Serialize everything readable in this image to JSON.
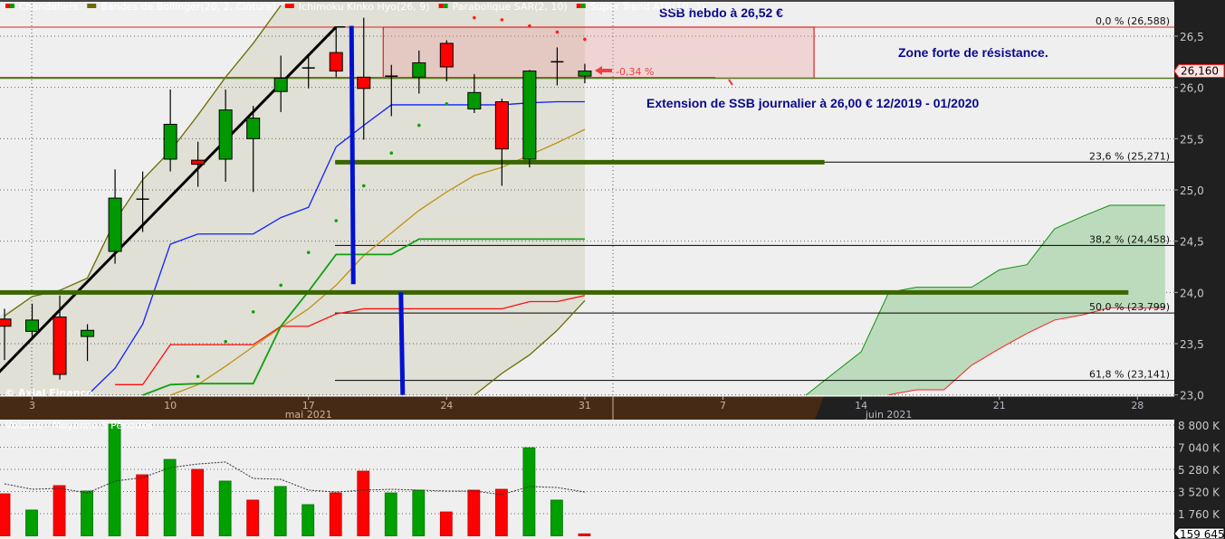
{
  "legend": {
    "items": [
      {
        "label": "Chandeliers",
        "colors": [
          "#ff0000",
          "#00a000"
        ]
      },
      {
        "label": "Bandes de Bollinger(20, 2, Clôture)",
        "colors": [
          "#6b6b00"
        ]
      },
      {
        "label": "Ichimoku Kinko Hyo(26, 9)",
        "colors": [
          "#ff0000"
        ]
      },
      {
        "label": "Parabolique SAR(2, 10)",
        "colors": [
          "#ff0000",
          "#00a000"
        ]
      },
      {
        "label": "Super Trend ATR(10, 3)",
        "colors": [
          "#ff0000",
          "#00a000"
        ]
      }
    ],
    "volume_label": "Volume - Moyenne 5 Périodes",
    "watermark": "© Axial Finance"
  },
  "annotations": {
    "ssb_hebdo": "SSB hebdo à 26,52 €",
    "resistance": "Zone forte de résistance.",
    "ssb_journalier": "Extension de SSB journalier à 26,00 € 12/2019 - 01/2020",
    "change": "-0,34 %"
  },
  "colors": {
    "up": "#009900",
    "down": "#ff0000",
    "annotation": "#0a0a8c",
    "ssb_line": "#3a6600",
    "fib": "#000000",
    "axis_bg": "#202020",
    "time_bg_past": "#472a16"
  },
  "chart_data": [
    {
      "type": "candlestick",
      "title": "",
      "ylim": [
        23.0,
        26.85
      ],
      "y_ticks": [
        "26,5",
        "26,0",
        "25,5",
        "25,0",
        "24,5",
        "24,0",
        "23,5",
        "23,0"
      ],
      "y_tick_values": [
        26.5,
        26.0,
        25.5,
        25.0,
        24.5,
        24.0,
        23.5,
        23.0
      ],
      "x_ticks": [
        {
          "date": "2021-05-03",
          "label": "3"
        },
        {
          "date": "2021-05-10",
          "label": "10"
        },
        {
          "date": "2021-05-17",
          "label": "17"
        },
        {
          "date": "2021-05-24",
          "label": "24"
        },
        {
          "date": "2021-05-31",
          "label": "31"
        },
        {
          "date": "2021-06-07",
          "label": "7"
        },
        {
          "date": "2021-06-14",
          "label": "14"
        },
        {
          "date": "2021-06-21",
          "label": "21"
        },
        {
          "date": "2021-06-28",
          "label": "28"
        }
      ],
      "x_months": [
        {
          "date": "2021-05-17",
          "label": "mai 2021"
        },
        {
          "date": "2021-06-15",
          "label": "juin 2021"
        }
      ],
      "x_end_date": "2021-06-29",
      "last_price": "26,160",
      "grid": true,
      "candles": [
        {
          "date": "2021-04-30",
          "o": 23.74,
          "h": 23.84,
          "l": 23.34,
          "c": 23.67
        },
        {
          "date": "2021-05-03",
          "o": 23.62,
          "h": 23.89,
          "l": 23.55,
          "c": 23.73
        },
        {
          "date": "2021-05-04",
          "o": 23.76,
          "h": 23.97,
          "l": 23.15,
          "c": 23.2
        },
        {
          "date": "2021-05-05",
          "o": 23.57,
          "h": 23.69,
          "l": 23.33,
          "c": 23.63
        },
        {
          "date": "2021-05-06",
          "o": 24.4,
          "h": 25.2,
          "l": 24.28,
          "c": 24.92
        },
        {
          "date": "2021-05-07",
          "o": 24.91,
          "h": 25.18,
          "l": 24.59,
          "c": 24.91
        },
        {
          "date": "2021-05-10",
          "o": 25.3,
          "h": 25.98,
          "l": 25.18,
          "c": 25.64
        },
        {
          "date": "2021-05-11",
          "o": 25.29,
          "h": 25.47,
          "l": 25.03,
          "c": 25.25
        },
        {
          "date": "2021-05-12",
          "o": 25.3,
          "h": 25.98,
          "l": 25.08,
          "c": 25.78
        },
        {
          "date": "2021-05-13",
          "o": 25.5,
          "h": 25.82,
          "l": 24.98,
          "c": 25.7
        },
        {
          "date": "2021-05-14",
          "o": 25.96,
          "h": 26.31,
          "l": 25.76,
          "c": 26.09
        },
        {
          "date": "2021-05-17",
          "o": 26.19,
          "h": 26.31,
          "l": 25.99,
          "c": 26.19
        },
        {
          "date": "2021-05-18",
          "o": 26.34,
          "h": 26.59,
          "l": 26.1,
          "c": 26.16
        },
        {
          "date": "2021-05-19",
          "o": 26.1,
          "h": 26.68,
          "l": 25.49,
          "c": 25.99
        },
        {
          "date": "2021-05-20",
          "o": 26.11,
          "h": 26.22,
          "l": 25.72,
          "c": 26.11
        },
        {
          "date": "2021-05-21",
          "o": 26.1,
          "h": 26.36,
          "l": 25.94,
          "c": 26.24
        },
        {
          "date": "2021-05-24",
          "o": 26.43,
          "h": 26.46,
          "l": 26.06,
          "c": 26.2
        },
        {
          "date": "2021-05-25",
          "o": 25.79,
          "h": 26.13,
          "l": 25.75,
          "c": 25.95
        },
        {
          "date": "2021-05-26",
          "o": 25.86,
          "h": 25.89,
          "l": 25.04,
          "c": 25.4
        },
        {
          "date": "2021-05-27",
          "o": 25.3,
          "h": 26.17,
          "l": 25.22,
          "c": 26.16
        },
        {
          "date": "2021-05-28",
          "o": 26.25,
          "h": 26.39,
          "l": 26.02,
          "c": 26.25
        },
        {
          "date": "2021-05-31",
          "o": 26.11,
          "h": 26.23,
          "l": 26.04,
          "c": 26.16
        }
      ],
      "indicators": {
        "bollinger_upper": [
          23.77,
          23.96,
          24.02,
          24.14,
          24.7,
          25.1,
          25.38,
          25.73,
          26.1,
          26.43,
          26.8,
          null,
          null,
          null,
          null,
          null,
          null,
          null,
          null,
          null,
          null,
          null
        ],
        "bollinger_middle": [
          null,
          null,
          null,
          null,
          null,
          null,
          22.95,
          23.1,
          23.28,
          23.47,
          23.66,
          23.84,
          24.07,
          24.36,
          24.58,
          24.8,
          24.98,
          25.14,
          25.22,
          25.34,
          25.46,
          25.59
        ],
        "bollinger_lower": [
          null,
          null,
          null,
          null,
          null,
          null,
          null,
          null,
          null,
          null,
          null,
          null,
          null,
          null,
          null,
          null,
          null,
          22.97,
          23.21,
          23.39,
          23.63,
          23.92
        ],
        "tenkan_blue": [
          null,
          null,
          null,
          22.95,
          23.26,
          23.69,
          24.47,
          24.57,
          24.57,
          24.57,
          24.73,
          24.83,
          25.42,
          25.63,
          25.83,
          25.83,
          25.83,
          25.83,
          25.83,
          25.85,
          25.86,
          25.86
        ],
        "kijun_red": [
          null,
          null,
          null,
          null,
          23.1,
          23.1,
          23.49,
          23.49,
          23.49,
          23.49,
          23.67,
          23.67,
          23.79,
          23.84,
          23.84,
          23.84,
          23.84,
          23.84,
          23.84,
          23.91,
          23.91,
          23.97
        ],
        "supertrend_green": [
          null,
          null,
          null,
          null,
          null,
          22.95,
          23.1,
          23.11,
          23.11,
          23.11,
          23.67,
          24.01,
          24.37,
          24.37,
          24.37,
          24.52,
          24.52,
          24.52,
          24.52,
          24.52,
          24.52,
          24.52
        ],
        "sar": [
          null,
          null,
          null,
          null,
          null,
          null,
          null,
          {
            "v": 23.18,
            "side": "below"
          },
          {
            "v": 23.52,
            "side": "below"
          },
          {
            "v": 23.81,
            "side": "below"
          },
          {
            "v": 24.07,
            "side": "below"
          },
          {
            "v": 24.39,
            "side": "below"
          },
          {
            "v": 24.7,
            "side": "below"
          },
          {
            "v": 25.04,
            "side": "below"
          },
          {
            "v": 25.36,
            "side": "below"
          },
          {
            "v": 25.63,
            "side": "below"
          },
          {
            "v": 25.84,
            "side": "below"
          },
          {
            "v": 26.68,
            "side": "above"
          },
          {
            "v": 26.66,
            "side": "above"
          },
          {
            "v": 26.6,
            "side": "above"
          },
          {
            "v": 26.54,
            "side": "above"
          },
          {
            "v": 26.47,
            "side": "above"
          }
        ],
        "kumo": [
          {
            "date": "2021-06-10",
            "ssa": 22.8,
            "ssb": 22.8
          },
          {
            "date": "2021-06-11",
            "ssa": 23.21,
            "ssb": 22.9
          },
          {
            "date": "2021-06-14",
            "ssa": 23.42,
            "ssb": 22.95
          },
          {
            "date": "2021-06-15",
            "ssa": 24.0,
            "ssb": 23.0
          },
          {
            "date": "2021-06-16",
            "ssa": 24.05,
            "ssb": 23.05
          },
          {
            "date": "2021-06-17",
            "ssa": 24.05,
            "ssb": 23.05
          },
          {
            "date": "2021-06-18",
            "ssa": 24.05,
            "ssb": 23.29
          },
          {
            "date": "2021-06-21",
            "ssa": 24.22,
            "ssb": 23.45
          },
          {
            "date": "2021-06-22",
            "ssa": 24.27,
            "ssb": 23.6
          },
          {
            "date": "2021-06-23",
            "ssa": 24.62,
            "ssb": 23.73
          },
          {
            "date": "2021-06-24",
            "ssa": 24.74,
            "ssb": 23.78
          },
          {
            "date": "2021-06-25",
            "ssa": 24.85,
            "ssb": 23.85
          },
          {
            "date": "2021-06-28",
            "ssa": 24.85,
            "ssb": 23.85
          },
          {
            "date": "2021-06-29",
            "ssa": 24.85,
            "ssb": 23.85
          }
        ]
      },
      "fibonacci": [
        {
          "label": "0,0 % (26,588)",
          "value": 26.588
        },
        {
          "label": "23,6 % (25,271)",
          "value": 25.271
        },
        {
          "label": "38,2 % (24,458)",
          "value": 24.458
        },
        {
          "label": "50,0 % (23,799)",
          "value": 23.799
        },
        {
          "label": "61,8 % (23,141)",
          "value": 23.141
        }
      ],
      "drawings": {
        "trendline": [
          {
            "date": "2021-04-29",
            "value": 23.0
          },
          {
            "date": "2021-05-18",
            "value": 26.59
          }
        ],
        "ssb_lines": [
          {
            "value": 24.0,
            "from": "2021-04-29",
            "to": "2021-06-28"
          },
          {
            "value": 25.27,
            "from": "2021-05-18",
            "to": "2021-06-11"
          }
        ],
        "level_line": 26.09,
        "resistance_zone": {
          "from": "2021-05-20",
          "to": "2021-06-10",
          "top": 26.588,
          "bottom": 26.09
        },
        "vertical_marks": [
          {
            "date": "2021-05-18",
            "top": 26.6,
            "bottom": 24.08
          },
          {
            "date": "2021-05-21",
            "top": 24.0,
            "bottom": 23.0
          }
        ]
      }
    },
    {
      "type": "bar",
      "title": "Volume - Moyenne 5 Périodes",
      "ylim": [
        0,
        8800000
      ],
      "y_ticks": [
        "8 800 K",
        "7 040 K",
        "5 280 K",
        "3 520 K",
        "1 760 K"
      ],
      "y_tick_values": [
        8800000,
        7040000,
        5280000,
        3520000,
        1760000
      ],
      "last_volume": "159 645",
      "values": [
        3340000,
        2050000,
        3990000,
        3560000,
        8870000,
        4850000,
        6070000,
        5280000,
        4350000,
        2840000,
        3920000,
        2480000,
        3410000,
        5140000,
        3410000,
        3630000,
        1900000,
        3630000,
        3700000,
        7000000,
        2840000,
        159645
      ],
      "directions": [
        "down",
        "up",
        "down",
        "up",
        "up",
        "down",
        "up",
        "down",
        "up",
        "down",
        "up",
        "up",
        "down",
        "down",
        "up",
        "up",
        "down",
        "down",
        "down",
        "up",
        "up",
        "down"
      ],
      "moving_average_5": [
        4130000,
        3700000,
        3770000,
        3410000,
        4350000,
        4630000,
        5420000,
        5710000,
        5860000,
        4560000,
        4490000,
        3630000,
        3480000,
        3630000,
        3700000,
        3630000,
        3560000,
        3560000,
        3270000,
        3920000,
        3840000,
        3480000
      ]
    }
  ]
}
